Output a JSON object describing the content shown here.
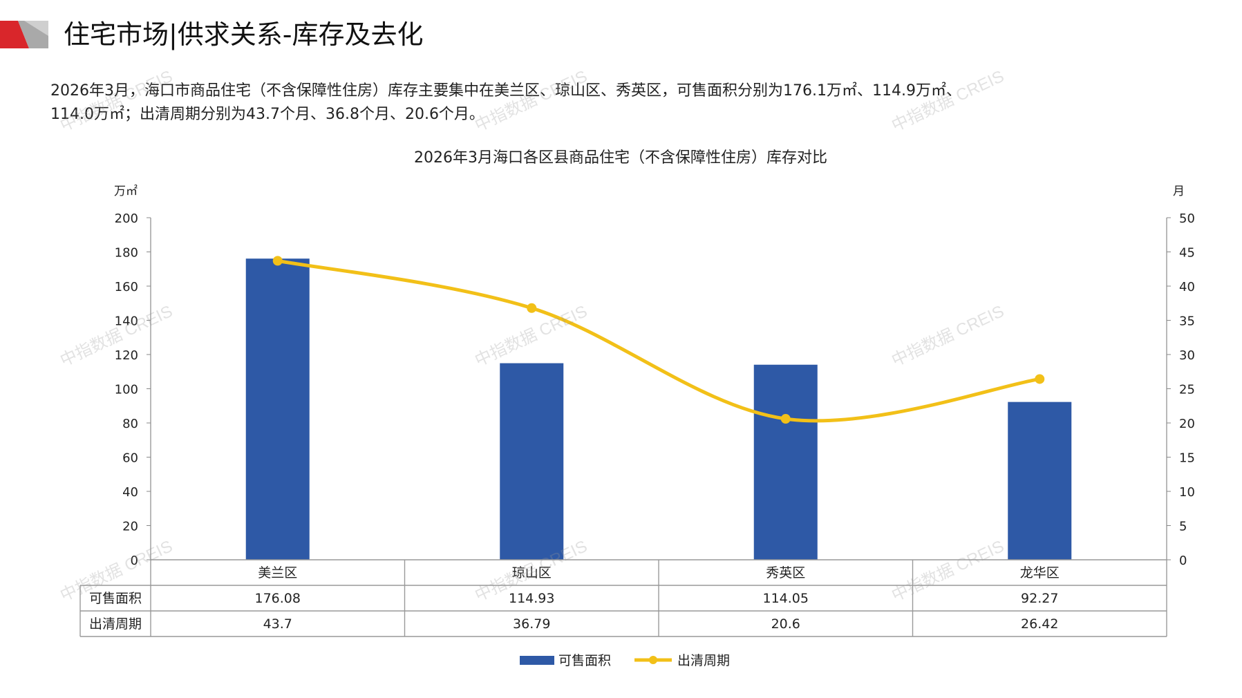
{
  "header": {
    "title": "住宅市场|供求关系-库存及去化"
  },
  "summary": {
    "line1": "2026年3月，海口市商品住宅（不含保障性住房）库存主要集中在美兰区、琼山区、秀英区，可售面积分别为176.1万㎡、114.9万㎡、",
    "line2": "114.0万㎡；出清周期分别为43.7个月、36.8个月、20.6个月。"
  },
  "watermark": "中指数据 CREIS",
  "colors": {
    "bar": "#2e59a6",
    "line": "#f2c018",
    "brand_red": "#d9262b",
    "brand_gray": "#a9a9a9"
  },
  "chart_data": {
    "type": "bar",
    "title": "2026年3月海口各区县商品住宅（不含保障性住房）库存对比",
    "categories": [
      "美兰区",
      "琼山区",
      "秀英区",
      "龙华区"
    ],
    "y_left_unit": "万㎡",
    "y_right_unit": "月",
    "ylim_left": [
      0,
      200
    ],
    "ylim_right": [
      0,
      50
    ],
    "yticks_left": [
      "0",
      "20",
      "40",
      "60",
      "80",
      "100",
      "120",
      "140",
      "160",
      "180",
      "200"
    ],
    "yticks_right": [
      "0",
      "5",
      "10",
      "15",
      "20",
      "25",
      "30",
      "35",
      "40",
      "45",
      "50"
    ],
    "grid": false,
    "legend_position": "bottom",
    "series": [
      {
        "name": "可售面积",
        "type": "bar",
        "axis": "left",
        "values": [
          176.08,
          114.93,
          114.05,
          92.27
        ],
        "labels": [
          "176.08",
          "114.93",
          "114.05",
          "92.27"
        ]
      },
      {
        "name": "出清周期",
        "type": "line",
        "axis": "right",
        "values": [
          43.7,
          36.79,
          20.6,
          26.42
        ],
        "labels": [
          "43.7",
          "36.79",
          "20.6",
          "26.42"
        ]
      }
    ]
  }
}
